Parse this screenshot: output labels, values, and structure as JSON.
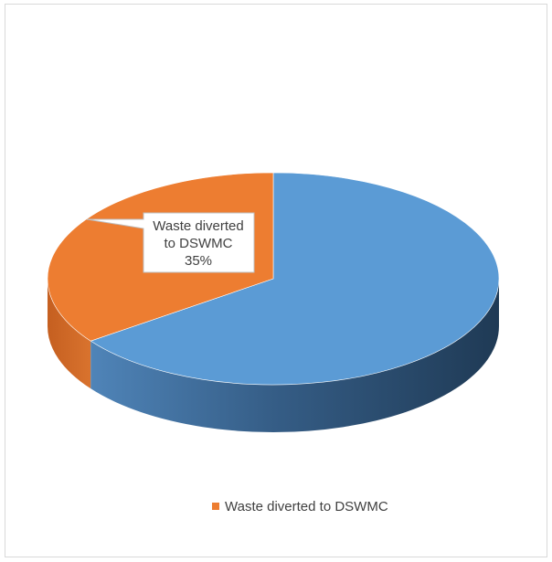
{
  "chart_data": {
    "type": "pie",
    "style": "3d",
    "title": "",
    "slices": [
      {
        "name": "",
        "value": 65,
        "color": "#5b9bd5",
        "data_label": ""
      },
      {
        "name": "Waste diverted to DSWMC",
        "value": 35,
        "color": "#ed7d31",
        "data_label": "35%"
      }
    ],
    "legend": {
      "placement": "bottom",
      "entries": [
        {
          "label": "Waste diverted to DSWMC",
          "color": "#ed7d31"
        }
      ]
    }
  }
}
